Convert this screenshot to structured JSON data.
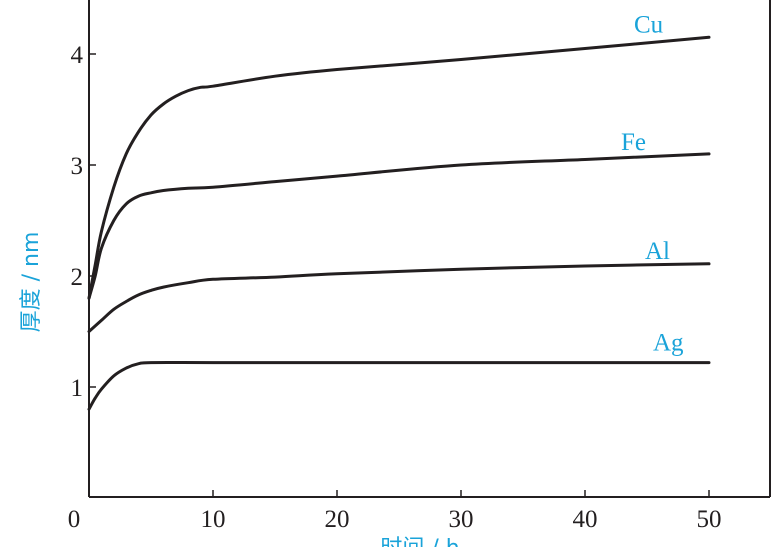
{
  "chart_data": {
    "type": "line",
    "title": "",
    "xlabel": "时间 / h",
    "ylabel": "厚度 / nm",
    "xlim": [
      0,
      50
    ],
    "ylim": [
      0,
      4.5
    ],
    "xticks": [
      0,
      10,
      20,
      30,
      40,
      50
    ],
    "yticks": [
      1,
      2,
      3,
      4
    ],
    "grid": false,
    "legend": "none (series labels placed beside line ends)",
    "colors": {
      "line": "#231f20",
      "label": "#1aa3d9",
      "axis": "#231f20"
    },
    "series": [
      {
        "name": "Cu",
        "x": [
          0,
          0.5,
          1,
          2,
          3,
          4,
          5,
          6,
          7,
          8,
          9,
          10,
          15,
          20,
          30,
          40,
          50
        ],
        "y": [
          1.8,
          2.1,
          2.4,
          2.8,
          3.1,
          3.3,
          3.45,
          3.55,
          3.62,
          3.67,
          3.7,
          3.71,
          3.8,
          3.86,
          3.95,
          4.05,
          4.15
        ]
      },
      {
        "name": "Fe",
        "x": [
          0,
          0.5,
          1,
          2,
          3,
          4,
          5,
          6,
          8,
          10,
          15,
          20,
          30,
          40,
          50
        ],
        "y": [
          1.8,
          2.0,
          2.25,
          2.5,
          2.65,
          2.72,
          2.75,
          2.77,
          2.79,
          2.8,
          2.85,
          2.9,
          3.0,
          3.05,
          3.1
        ]
      },
      {
        "name": "Al",
        "x": [
          0,
          1,
          2,
          3,
          4,
          5,
          6,
          8,
          10,
          15,
          20,
          30,
          40,
          50
        ],
        "y": [
          1.5,
          1.6,
          1.7,
          1.77,
          1.83,
          1.87,
          1.9,
          1.94,
          1.97,
          1.99,
          2.02,
          2.06,
          2.09,
          2.11
        ]
      },
      {
        "name": "Ag",
        "x": [
          0,
          0.5,
          1,
          2,
          3,
          4,
          5,
          10,
          20,
          30,
          40,
          50
        ],
        "y": [
          0.8,
          0.9,
          0.98,
          1.1,
          1.17,
          1.21,
          1.22,
          1.22,
          1.22,
          1.22,
          1.22,
          1.22
        ]
      }
    ]
  }
}
